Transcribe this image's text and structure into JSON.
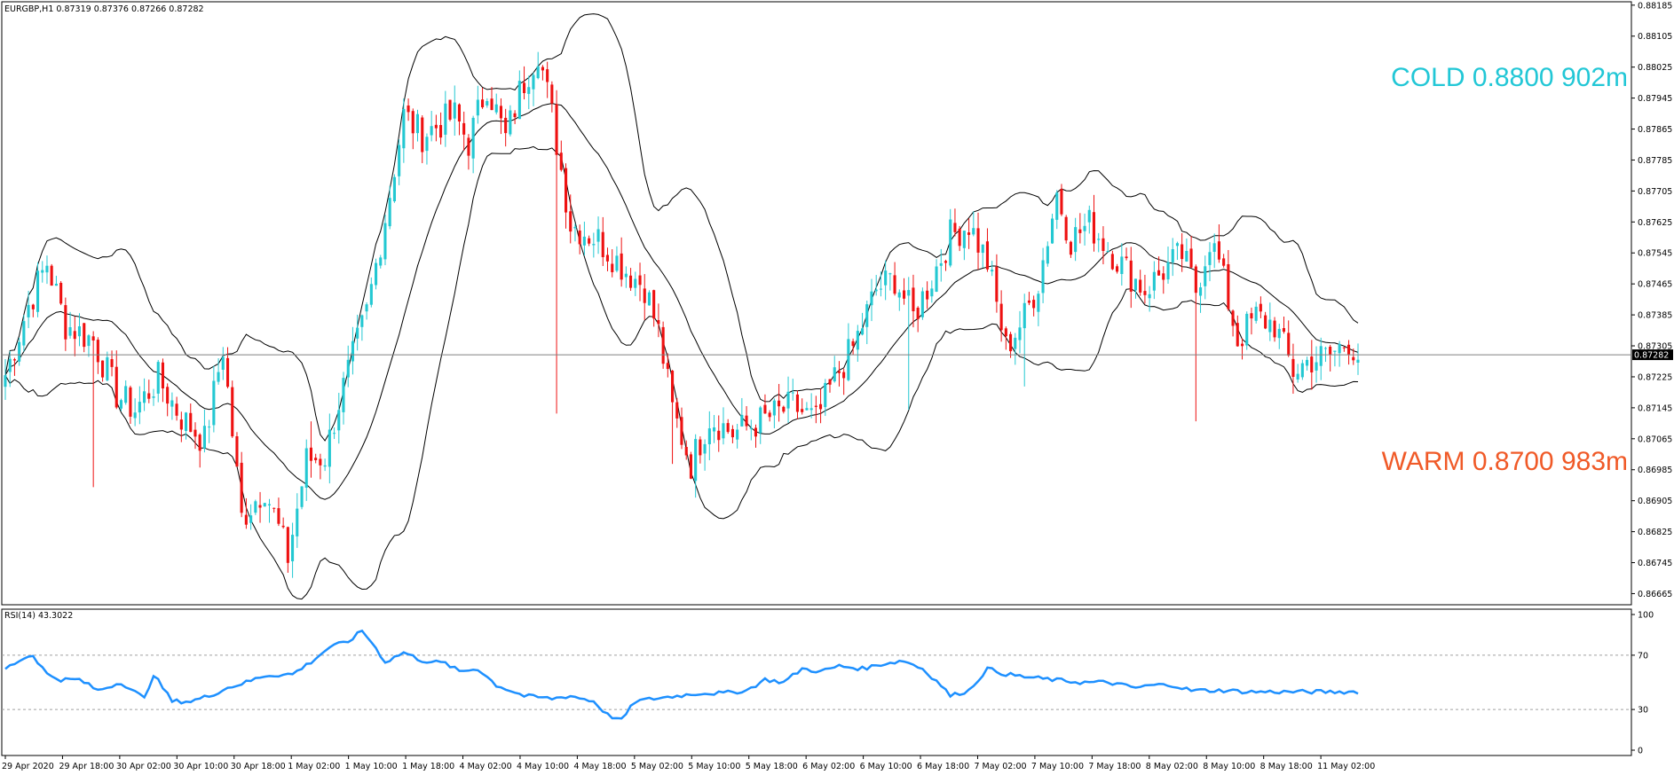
{
  "header": {
    "symbol_text": "EURGBP,H1  0.87319 0.87376 0.87266 0.87282"
  },
  "annotations": {
    "cold": {
      "text": "COLD 0.8800 902m",
      "color": "#22c7d6"
    },
    "warm": {
      "text": "WARM 0.8700 983m",
      "color": "#f05a28"
    }
  },
  "colors": {
    "bull": "#23c8d2",
    "bear": "#ee1111",
    "band": "#000000",
    "rsi": "#1e90ff",
    "price_line": "#808080"
  },
  "chart_data": [
    {
      "type": "candlestick",
      "symbol": "EURGBP",
      "timeframe": "H1",
      "ohlc_readout": {
        "open": 0.87319,
        "high": 0.87376,
        "low": 0.87266,
        "close": 0.87282
      },
      "current_price": 0.87282,
      "current_price_label": "0.87282",
      "ylim": [
        0.8665,
        0.8818
      ],
      "y_ticks": [
        "0.88185",
        "0.88105",
        "0.88025",
        "0.87945",
        "0.87865",
        "0.87785",
        "0.87705",
        "0.87625",
        "0.87545",
        "0.87465",
        "0.87385",
        "0.87305",
        "0.87225",
        "0.87145",
        "0.87065",
        "0.86985",
        "0.86905",
        "0.86825",
        "0.86745",
        "0.86665"
      ],
      "x_ticks": [
        "29 Apr 2020",
        "29 Apr 18:00",
        "30 Apr 02:00",
        "30 Apr 10:00",
        "30 Apr 18:00",
        "1 May 02:00",
        "1 May 10:00",
        "1 May 18:00",
        "4 May 02:00",
        "4 May 10:00",
        "4 May 18:00",
        "5 May 02:00",
        "5 May 10:00",
        "5 May 18:00",
        "6 May 02:00",
        "6 May 10:00",
        "6 May 18:00",
        "7 May 02:00",
        "7 May 10:00",
        "7 May 18:00",
        "8 May 02:00",
        "8 May 10:00",
        "8 May 18:00",
        "11 May 02:00"
      ],
      "overlays": [
        "Bollinger Bands"
      ],
      "anchors": [
        [
          0,
          0.8723
        ],
        [
          5,
          0.8741
        ],
        [
          9,
          0.8752
        ],
        [
          13,
          0.8736
        ],
        [
          19,
          0.8732
        ],
        [
          24,
          0.8718
        ],
        [
          28,
          0.8714
        ],
        [
          33,
          0.8722
        ],
        [
          38,
          0.8712
        ],
        [
          43,
          0.8706
        ],
        [
          47,
          0.873
        ],
        [
          51,
          0.8686
        ],
        [
          56,
          0.8694
        ],
        [
          61,
          0.8676
        ],
        [
          65,
          0.8701
        ],
        [
          69,
          0.8702
        ],
        [
          72,
          0.8716
        ],
        [
          78,
          0.8739
        ],
        [
          83,
          0.877
        ],
        [
          86,
          0.879
        ],
        [
          90,
          0.8785
        ],
        [
          94,
          0.8788
        ],
        [
          97,
          0.879
        ],
        [
          100,
          0.8783
        ],
        [
          104,
          0.8798
        ],
        [
          108,
          0.8784
        ],
        [
          111,
          0.8796
        ],
        [
          115,
          0.8807
        ],
        [
          118,
          0.879
        ],
        [
          122,
          0.8762
        ],
        [
          128,
          0.8758
        ],
        [
          134,
          0.875
        ],
        [
          138,
          0.8746
        ],
        [
          141,
          0.8734
        ],
        [
          144,
          0.8714
        ],
        [
          148,
          0.87
        ],
        [
          152,
          0.8712
        ],
        [
          157,
          0.8708
        ],
        [
          163,
          0.8711
        ],
        [
          170,
          0.8715
        ],
        [
          175,
          0.8711
        ],
        [
          179,
          0.8722
        ],
        [
          183,
          0.873
        ],
        [
          188,
          0.8745
        ],
        [
          192,
          0.8748
        ],
        [
          196,
          0.8738
        ],
        [
          200,
          0.8748
        ],
        [
          204,
          0.8759
        ],
        [
          208,
          0.8762
        ],
        [
          212,
          0.8752
        ],
        [
          216,
          0.873
        ],
        [
          220,
          0.8738
        ],
        [
          223,
          0.8747
        ],
        [
          227,
          0.877
        ],
        [
          230,
          0.8758
        ],
        [
          234,
          0.8762
        ],
        [
          238,
          0.8756
        ],
        [
          242,
          0.875
        ],
        [
          246,
          0.8745
        ],
        [
          250,
          0.875
        ],
        [
          254,
          0.8754
        ],
        [
          257,
          0.8745
        ],
        [
          260,
          0.8758
        ],
        [
          262,
          0.8752
        ],
        [
          266,
          0.8732
        ],
        [
          270,
          0.8738
        ],
        [
          274,
          0.8736
        ],
        [
          278,
          0.8724
        ],
        [
          282,
          0.8727
        ],
        [
          286,
          0.8728
        ],
        [
          290,
          0.8732
        ],
        [
          292,
          0.8728
        ]
      ],
      "marks": [
        {
          "i": 19,
          "price": 0.8694
        },
        {
          "i": 66,
          "price": 0.8711
        },
        {
          "i": 119,
          "price": 0.8713
        },
        {
          "i": 144,
          "price": 0.87
        },
        {
          "i": 195,
          "price": 0.8714
        },
        {
          "i": 220,
          "price": 0.872
        },
        {
          "i": 257,
          "price": 0.8711
        },
        {
          "i": 290,
          "price": 0.8732
        }
      ]
    },
    {
      "type": "line",
      "title": "RSI(14) 43.3022",
      "ylim": [
        0,
        100
      ],
      "y_ticks": [
        "100",
        "70",
        "30",
        "0"
      ],
      "levels": [
        70,
        30
      ],
      "anchors": [
        [
          0,
          60
        ],
        [
          4,
          68
        ],
        [
          6,
          70
        ],
        [
          9,
          56
        ],
        [
          12,
          52
        ],
        [
          16,
          52
        ],
        [
          20,
          44
        ],
        [
          25,
          50
        ],
        [
          30,
          38
        ],
        [
          32,
          56
        ],
        [
          36,
          36
        ],
        [
          40,
          36
        ],
        [
          44,
          40
        ],
        [
          48,
          46
        ],
        [
          52,
          50
        ],
        [
          56,
          55
        ],
        [
          62,
          56
        ],
        [
          66,
          65
        ],
        [
          70,
          76
        ],
        [
          74,
          80
        ],
        [
          77,
          88
        ],
        [
          79,
          80
        ],
        [
          82,
          65
        ],
        [
          86,
          72
        ],
        [
          90,
          66
        ],
        [
          95,
          64
        ],
        [
          98,
          58
        ],
        [
          102,
          60
        ],
        [
          106,
          48
        ],
        [
          112,
          40
        ],
        [
          118,
          38
        ],
        [
          122,
          40
        ],
        [
          127,
          36
        ],
        [
          130,
          26
        ],
        [
          133,
          22
        ],
        [
          136,
          36
        ],
        [
          140,
          38
        ],
        [
          145,
          40
        ],
        [
          150,
          42
        ],
        [
          155,
          42
        ],
        [
          160,
          44
        ],
        [
          164,
          52
        ],
        [
          168,
          50
        ],
        [
          172,
          60
        ],
        [
          176,
          58
        ],
        [
          180,
          62
        ],
        [
          185,
          60
        ],
        [
          190,
          64
        ],
        [
          194,
          66
        ],
        [
          198,
          60
        ],
        [
          202,
          48
        ],
        [
          204,
          40
        ],
        [
          208,
          44
        ],
        [
          212,
          60
        ],
        [
          216,
          56
        ],
        [
          220,
          54
        ],
        [
          226,
          52
        ],
        [
          232,
          50
        ],
        [
          238,
          50
        ],
        [
          244,
          46
        ],
        [
          248,
          48
        ],
        [
          252,
          48
        ],
        [
          256,
          44
        ],
        [
          260,
          44
        ],
        [
          264,
          44
        ],
        [
          268,
          43
        ],
        [
          272,
          43
        ]
      ]
    }
  ]
}
